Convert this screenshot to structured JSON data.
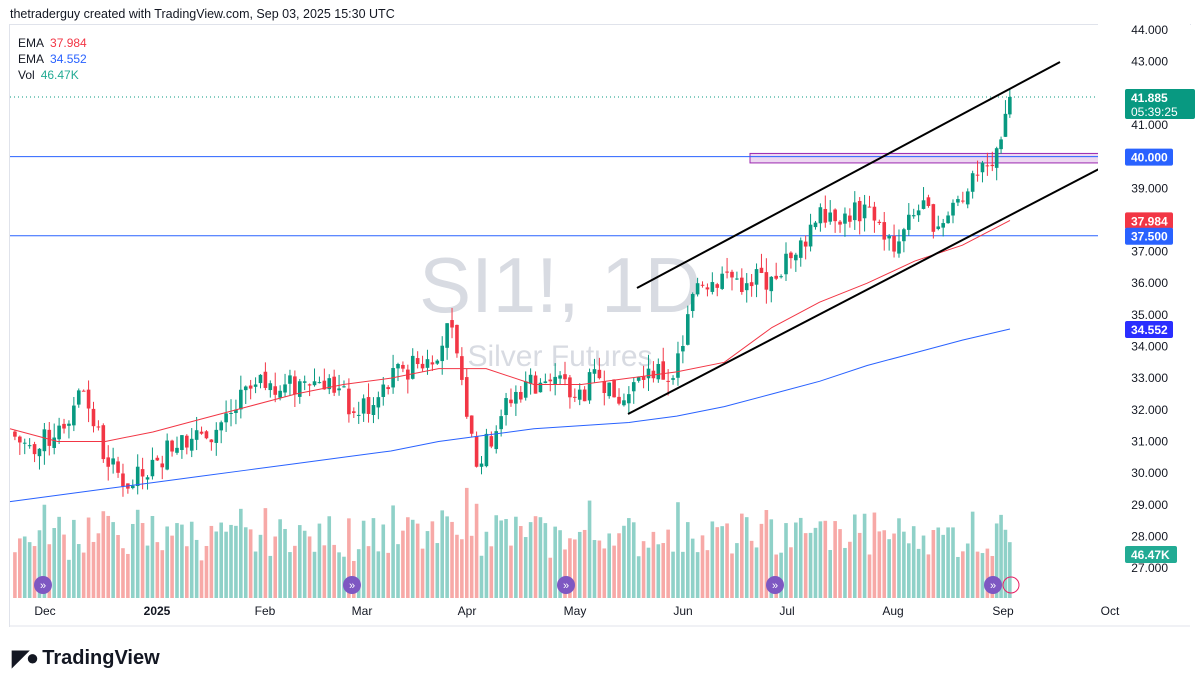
{
  "header": {
    "attribution": "thetraderguy created with TradingView.com, Sep 03, 2025 15:30 UTC"
  },
  "legend": [
    {
      "label": "EMA",
      "value": "37.984",
      "color": "#f23645"
    },
    {
      "label": "EMA",
      "value": "34.552",
      "color": "#2962ff"
    },
    {
      "label": "Vol",
      "value": "46.47K",
      "color": "#22ab94"
    }
  ],
  "watermark": {
    "symbol": "SI1!, 1D",
    "name": "Silver Futures"
  },
  "logo": "TradingView",
  "chart_data": {
    "type": "candlestick",
    "symbol": "SI1!",
    "interval": "1D",
    "ylim": [
      26.5,
      44.3
    ],
    "y_ticks": [
      "44.000",
      "43.000",
      "41.000",
      "39.000",
      "37.000",
      "36.000",
      "35.000",
      "34.000",
      "33.000",
      "32.000",
      "31.000",
      "30.000",
      "29.000",
      "28.000",
      "27.000"
    ],
    "x_ticks": [
      "Dec",
      "2025",
      "Feb",
      "Mar",
      "Apr",
      "May",
      "Jun",
      "Jul",
      "Aug",
      "Sep",
      "Oct"
    ],
    "weekly_closes": [
      {
        "date": "2024-11-22",
        "close": 31.3
      },
      {
        "date": "2024-11-29",
        "close": 30.6
      },
      {
        "date": "2024-12-06",
        "close": 31.5
      },
      {
        "date": "2024-12-13",
        "close": 32.6
      },
      {
        "date": "2024-12-20",
        "close": 30.2
      },
      {
        "date": "2024-12-27",
        "close": 29.6
      },
      {
        "date": "2025-01-03",
        "close": 30.4
      },
      {
        "date": "2025-01-10",
        "close": 31.2
      },
      {
        "date": "2025-01-17",
        "close": 31.1
      },
      {
        "date": "2025-01-24",
        "close": 31.9
      },
      {
        "date": "2025-01-31",
        "close": 32.8
      },
      {
        "date": "2025-02-07",
        "close": 32.6
      },
      {
        "date": "2025-02-14",
        "close": 32.9
      },
      {
        "date": "2025-02-21",
        "close": 33.0
      },
      {
        "date": "2025-02-28",
        "close": 31.9
      },
      {
        "date": "2025-03-07",
        "close": 32.4
      },
      {
        "date": "2025-03-14",
        "close": 33.3
      },
      {
        "date": "2025-03-21",
        "close": 33.6
      },
      {
        "date": "2025-03-28",
        "close": 34.6
      },
      {
        "date": "2025-04-04",
        "close": 30.2
      },
      {
        "date": "2025-04-11",
        "close": 31.8
      },
      {
        "date": "2025-04-18",
        "close": 32.9
      },
      {
        "date": "2025-04-25",
        "close": 32.9
      },
      {
        "date": "2025-05-02",
        "close": 32.4
      },
      {
        "date": "2025-05-09",
        "close": 33.0
      },
      {
        "date": "2025-05-16",
        "close": 32.3
      },
      {
        "date": "2025-05-23",
        "close": 33.3
      },
      {
        "date": "2025-05-30",
        "close": 33.0
      },
      {
        "date": "2025-06-06",
        "close": 36.0
      },
      {
        "date": "2025-06-13",
        "close": 36.3
      },
      {
        "date": "2025-06-20",
        "close": 36.0
      },
      {
        "date": "2025-06-27",
        "close": 36.2
      },
      {
        "date": "2025-07-04",
        "close": 36.9
      },
      {
        "date": "2025-07-11",
        "close": 38.4
      },
      {
        "date": "2025-07-18",
        "close": 38.2
      },
      {
        "date": "2025-07-25",
        "close": 38.4
      },
      {
        "date": "2025-08-01",
        "close": 37.0
      },
      {
        "date": "2025-08-08",
        "close": 38.3
      },
      {
        "date": "2025-08-15",
        "close": 37.9
      },
      {
        "date": "2025-08-22",
        "close": 38.9
      },
      {
        "date": "2025-08-29",
        "close": 39.7
      },
      {
        "date": "2025-09-03",
        "close": 41.885
      }
    ],
    "ema_fast": {
      "value": 37.984,
      "color": "#f23645",
      "path": [
        31.4,
        31.0,
        31.0,
        31.3,
        31.7,
        32.1,
        32.5,
        32.8,
        33.0,
        33.3,
        33.3,
        32.8,
        32.8,
        33.0,
        33.2,
        33.5,
        34.6,
        35.4,
        36.0,
        36.7,
        37.2,
        37.984
      ]
    },
    "ema_slow": {
      "value": 34.552,
      "color": "#2962ff",
      "path": [
        29.1,
        29.3,
        29.5,
        29.7,
        29.9,
        30.1,
        30.3,
        30.5,
        30.7,
        31.0,
        31.2,
        31.4,
        31.5,
        31.6,
        31.8,
        32.1,
        32.5,
        32.9,
        33.4,
        33.8,
        34.2,
        34.552
      ]
    },
    "volume_last": "46.47K",
    "price_labels": [
      {
        "text": "41.885",
        "sub": "05:39:25",
        "price": 41.885,
        "color": "#089981"
      },
      {
        "text": "40.000",
        "price": 40.0,
        "color": "#2962ff"
      },
      {
        "text": "37.984",
        "price": 37.984,
        "color": "#f23645"
      },
      {
        "text": "37.500",
        "price": 37.5,
        "color": "#2962ff"
      },
      {
        "text": "34.552",
        "price": 34.552,
        "color": "#2a2eff"
      }
    ],
    "horizontal_lines": [
      40.0,
      37.5
    ],
    "zone": [
      39.8,
      40.1
    ],
    "colors": {
      "up": "#089981",
      "down": "#f23645",
      "vol_up": "#8fd1c8",
      "vol_down": "#f7a9a7"
    }
  }
}
